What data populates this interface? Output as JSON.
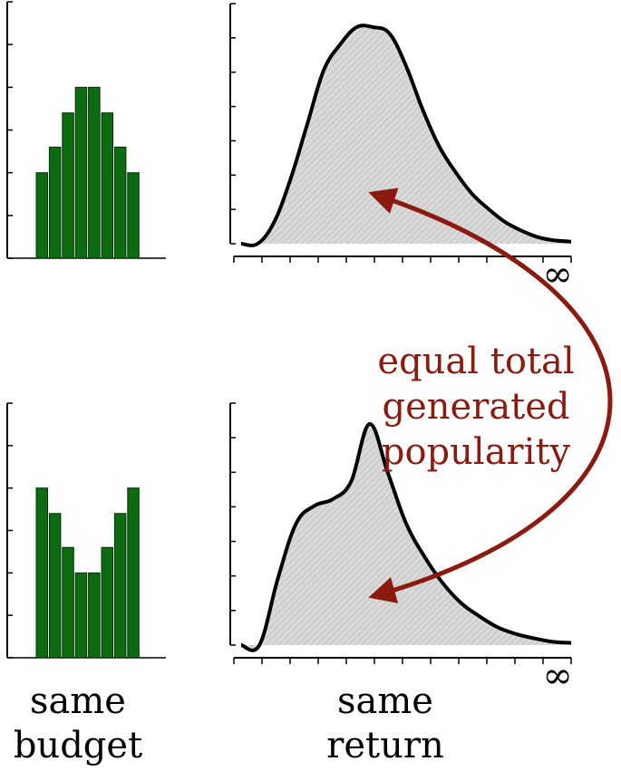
{
  "colors": {
    "bar_fill": "#0d6b12",
    "bar_stroke": "#043006",
    "curve_fill": "#d8d8d8",
    "curve_stroke": "#000000",
    "arrow": "#8b1a10",
    "annotation_text": "#8b1a10"
  },
  "annotation": {
    "line1": "equal total",
    "line2": "generated",
    "line3": "popularity"
  },
  "infinity_symbol": "∞",
  "captions": {
    "left_line1": "same",
    "left_line2": "budget",
    "right_line1": "same",
    "right_line2": "return"
  },
  "chart_data": [
    {
      "type": "bar",
      "panel": "top-left",
      "values": [
        2,
        2.6,
        3.4,
        4,
        4,
        3.4,
        2.6,
        2
      ]
    },
    {
      "type": "area",
      "panel": "top-right",
      "x_max_label": "∞",
      "y": [
        0,
        0,
        0.1,
        0.3,
        0.55,
        0.8,
        0.92,
        1.0,
        1.0,
        0.97,
        0.82,
        0.62,
        0.45,
        0.33,
        0.23,
        0.16,
        0.1,
        0.06,
        0.03,
        0.015,
        0.01
      ]
    },
    {
      "type": "bar",
      "panel": "bottom-left",
      "values": [
        4,
        3.4,
        2.6,
        2,
        2,
        2.6,
        3.4,
        4
      ]
    },
    {
      "type": "area",
      "panel": "bottom-right",
      "x_max_label": "∞",
      "y": [
        0,
        0,
        0.3,
        0.55,
        0.63,
        0.66,
        0.74,
        1.0,
        0.78,
        0.55,
        0.4,
        0.28,
        0.19,
        0.13,
        0.08,
        0.05,
        0.03,
        0.015,
        0.01
      ]
    }
  ]
}
